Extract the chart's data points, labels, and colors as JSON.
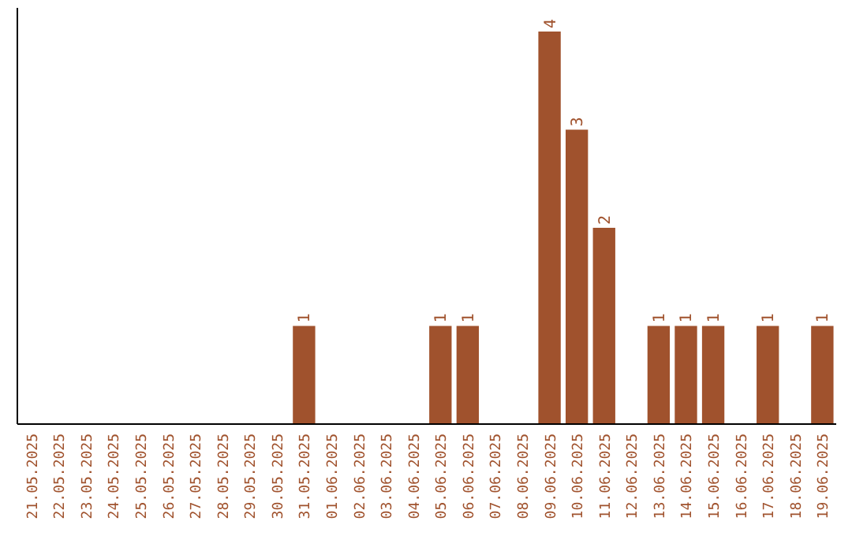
{
  "chart_data": {
    "type": "bar",
    "categories": [
      "21.05.2025",
      "22.05.2025",
      "23.05.2025",
      "24.05.2025",
      "25.05.2025",
      "26.05.2025",
      "27.05.2025",
      "28.05.2025",
      "29.05.2025",
      "30.05.2025",
      "31.05.2025",
      "01.06.2025",
      "02.06.2025",
      "03.06.2025",
      "04.06.2025",
      "05.06.2025",
      "06.06.2025",
      "07.06.2025",
      "08.06.2025",
      "09.06.2025",
      "10.06.2025",
      "11.06.2025",
      "12.06.2025",
      "13.06.2025",
      "14.06.2025",
      "15.06.2025",
      "16.06.2025",
      "17.06.2025",
      "18.06.2025",
      "19.06.2025"
    ],
    "values": [
      null,
      null,
      null,
      null,
      null,
      null,
      null,
      null,
      null,
      null,
      1,
      null,
      null,
      null,
      null,
      1,
      1,
      null,
      null,
      4,
      3,
      2,
      null,
      1,
      1,
      1,
      null,
      1,
      null,
      1
    ],
    "color": "#a0522d",
    "ylim": [
      0,
      4
    ],
    "data_labels": true,
    "tick_labels": "x"
  }
}
